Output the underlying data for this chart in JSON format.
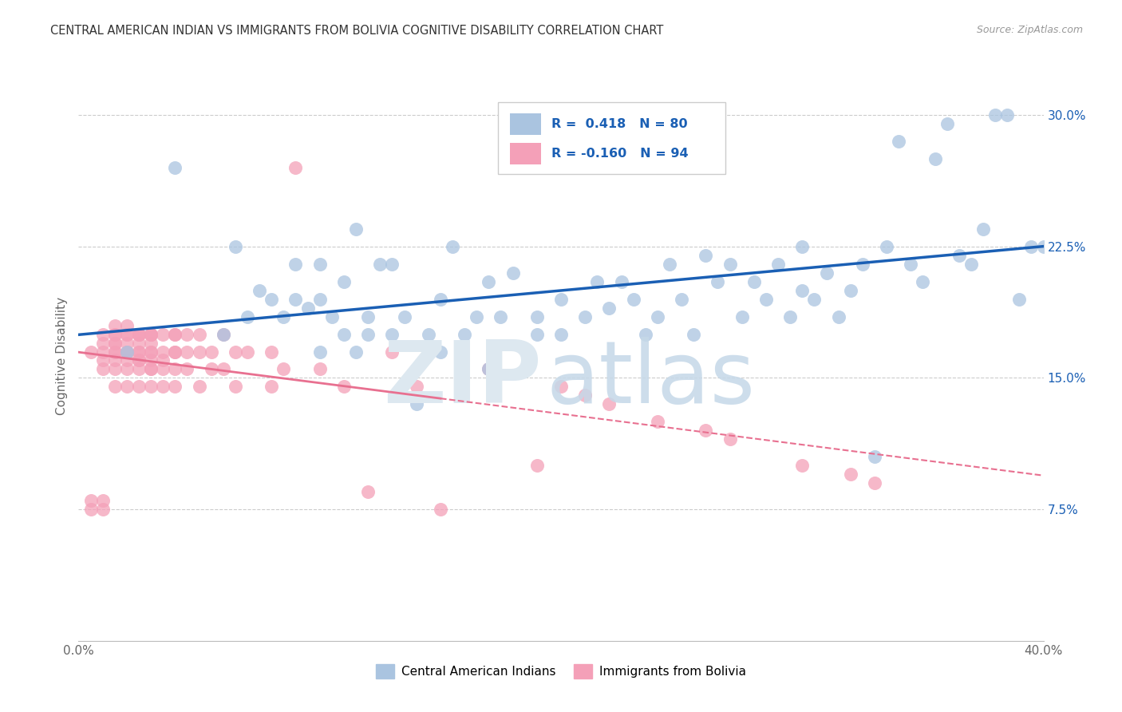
{
  "title": "CENTRAL AMERICAN INDIAN VS IMMIGRANTS FROM BOLIVIA COGNITIVE DISABILITY CORRELATION CHART",
  "source": "Source: ZipAtlas.com",
  "ylabel": "Cognitive Disability",
  "xlim": [
    0.0,
    0.4
  ],
  "ylim": [
    0.0,
    0.325
  ],
  "xticks": [
    0.0,
    0.1,
    0.2,
    0.3,
    0.4
  ],
  "xticklabels": [
    "0.0%",
    "",
    "",
    "",
    "40.0%"
  ],
  "yticks": [
    0.075,
    0.15,
    0.225,
    0.3
  ],
  "yticklabels": [
    "7.5%",
    "15.0%",
    "22.5%",
    "30.0%"
  ],
  "legend_blue_R": "0.418",
  "legend_blue_N": "80",
  "legend_pink_R": "-0.160",
  "legend_pink_N": "94",
  "blue_color": "#aac4e0",
  "pink_color": "#f4a0b8",
  "blue_line_color": "#1a5fb4",
  "pink_line_color": "#e87090",
  "blue_scatter_x": [
    0.02,
    0.04,
    0.06,
    0.065,
    0.07,
    0.075,
    0.08,
    0.085,
    0.09,
    0.09,
    0.095,
    0.1,
    0.1,
    0.1,
    0.105,
    0.11,
    0.11,
    0.115,
    0.115,
    0.12,
    0.12,
    0.125,
    0.13,
    0.13,
    0.135,
    0.14,
    0.145,
    0.15,
    0.15,
    0.155,
    0.16,
    0.165,
    0.17,
    0.17,
    0.175,
    0.18,
    0.19,
    0.19,
    0.2,
    0.2,
    0.21,
    0.215,
    0.22,
    0.225,
    0.23,
    0.235,
    0.24,
    0.245,
    0.25,
    0.255,
    0.26,
    0.265,
    0.27,
    0.275,
    0.28,
    0.285,
    0.29,
    0.295,
    0.3,
    0.3,
    0.305,
    0.31,
    0.315,
    0.32,
    0.325,
    0.33,
    0.335,
    0.34,
    0.345,
    0.35,
    0.355,
    0.36,
    0.365,
    0.37,
    0.375,
    0.38,
    0.385,
    0.39,
    0.395,
    0.4
  ],
  "blue_scatter_y": [
    0.165,
    0.27,
    0.175,
    0.225,
    0.185,
    0.2,
    0.195,
    0.185,
    0.195,
    0.215,
    0.19,
    0.165,
    0.195,
    0.215,
    0.185,
    0.175,
    0.205,
    0.165,
    0.235,
    0.175,
    0.185,
    0.215,
    0.175,
    0.215,
    0.185,
    0.135,
    0.175,
    0.195,
    0.165,
    0.225,
    0.175,
    0.185,
    0.205,
    0.155,
    0.185,
    0.21,
    0.175,
    0.185,
    0.175,
    0.195,
    0.185,
    0.205,
    0.19,
    0.205,
    0.195,
    0.175,
    0.185,
    0.215,
    0.195,
    0.175,
    0.22,
    0.205,
    0.215,
    0.185,
    0.205,
    0.195,
    0.215,
    0.185,
    0.225,
    0.2,
    0.195,
    0.21,
    0.185,
    0.2,
    0.215,
    0.105,
    0.225,
    0.285,
    0.215,
    0.205,
    0.275,
    0.295,
    0.22,
    0.215,
    0.235,
    0.3,
    0.3,
    0.195,
    0.225,
    0.225
  ],
  "pink_scatter_x": [
    0.005,
    0.005,
    0.005,
    0.01,
    0.01,
    0.01,
    0.01,
    0.01,
    0.01,
    0.01,
    0.015,
    0.015,
    0.015,
    0.015,
    0.015,
    0.015,
    0.015,
    0.015,
    0.015,
    0.015,
    0.02,
    0.02,
    0.02,
    0.02,
    0.02,
    0.02,
    0.02,
    0.02,
    0.02,
    0.025,
    0.025,
    0.025,
    0.025,
    0.025,
    0.025,
    0.025,
    0.025,
    0.025,
    0.025,
    0.03,
    0.03,
    0.03,
    0.03,
    0.03,
    0.03,
    0.03,
    0.03,
    0.03,
    0.03,
    0.035,
    0.035,
    0.035,
    0.035,
    0.035,
    0.04,
    0.04,
    0.04,
    0.04,
    0.04,
    0.04,
    0.045,
    0.045,
    0.045,
    0.05,
    0.05,
    0.05,
    0.055,
    0.055,
    0.06,
    0.06,
    0.065,
    0.065,
    0.07,
    0.08,
    0.08,
    0.085,
    0.09,
    0.1,
    0.11,
    0.12,
    0.13,
    0.14,
    0.15,
    0.17,
    0.19,
    0.2,
    0.21,
    0.22,
    0.24,
    0.26,
    0.27,
    0.3,
    0.32,
    0.33
  ],
  "pink_scatter_y": [
    0.165,
    0.075,
    0.08,
    0.165,
    0.175,
    0.16,
    0.155,
    0.075,
    0.08,
    0.17,
    0.17,
    0.165,
    0.175,
    0.16,
    0.155,
    0.145,
    0.175,
    0.165,
    0.18,
    0.17,
    0.17,
    0.165,
    0.175,
    0.16,
    0.155,
    0.145,
    0.175,
    0.165,
    0.18,
    0.175,
    0.165,
    0.175,
    0.16,
    0.155,
    0.145,
    0.17,
    0.165,
    0.175,
    0.16,
    0.175,
    0.16,
    0.175,
    0.165,
    0.155,
    0.17,
    0.165,
    0.155,
    0.145,
    0.175,
    0.165,
    0.175,
    0.16,
    0.155,
    0.145,
    0.165,
    0.175,
    0.155,
    0.145,
    0.165,
    0.175,
    0.165,
    0.175,
    0.155,
    0.165,
    0.175,
    0.145,
    0.165,
    0.155,
    0.175,
    0.155,
    0.165,
    0.145,
    0.165,
    0.165,
    0.145,
    0.155,
    0.27,
    0.155,
    0.145,
    0.085,
    0.165,
    0.145,
    0.075,
    0.155,
    0.1,
    0.145,
    0.14,
    0.135,
    0.125,
    0.12,
    0.115,
    0.1,
    0.095,
    0.09
  ]
}
